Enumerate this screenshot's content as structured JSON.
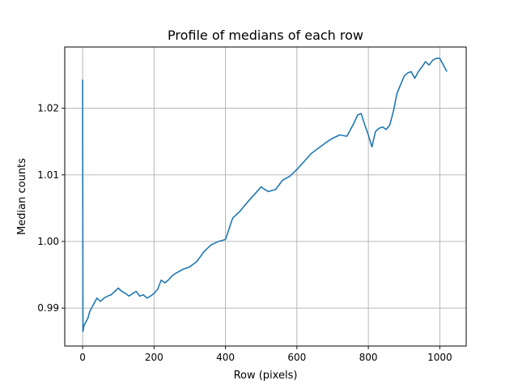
{
  "chart_data": {
    "type": "line",
    "title": "Profile of medians of each row",
    "xlabel": "Row (pixels)",
    "ylabel": "Median counts",
    "xlim": [
      -50,
      1074
    ],
    "ylim": [
      0.9843,
      1.0292
    ],
    "grid": true,
    "color": "#1f77b4",
    "xticks": [
      0,
      200,
      400,
      600,
      800,
      1000
    ],
    "xtick_labels": [
      "0",
      "200",
      "400",
      "600",
      "800",
      "1000"
    ],
    "yticks": [
      0.99,
      1.0,
      1.01,
      1.02
    ],
    "ytick_labels": [
      "0.99",
      "1.00",
      "1.01",
      "1.02"
    ],
    "series": [
      {
        "x": [
          0,
          1,
          2,
          3,
          5,
          10,
          15,
          20,
          30,
          40,
          50,
          60,
          70,
          80,
          90,
          100,
          110,
          120,
          130,
          140,
          150,
          160,
          170,
          180,
          190,
          200,
          210,
          220,
          230,
          240,
          250,
          260,
          280,
          300,
          320,
          340,
          360,
          380,
          400,
          420,
          440,
          460,
          480,
          500,
          510,
          520,
          540,
          560,
          580,
          600,
          620,
          640,
          660,
          680,
          700,
          720,
          740,
          760,
          770,
          780,
          790,
          800,
          810,
          820,
          830,
          840,
          850,
          860,
          870,
          880,
          890,
          900,
          910,
          920,
          930,
          940,
          950,
          960,
          970,
          980,
          990,
          1000,
          1010,
          1020
        ],
        "y": [
          1.0243,
          0.9865,
          0.9868,
          0.9872,
          0.9875,
          0.988,
          0.9885,
          0.9895,
          0.9905,
          0.9915,
          0.991,
          0.9915,
          0.9918,
          0.992,
          0.9925,
          0.993,
          0.9925,
          0.9922,
          0.9918,
          0.9922,
          0.9925,
          0.9918,
          0.992,
          0.9915,
          0.9918,
          0.9922,
          0.9928,
          0.9942,
          0.9938,
          0.9942,
          0.9948,
          0.9952,
          0.9958,
          0.9962,
          0.997,
          0.9985,
          0.9995,
          1.0,
          1.0003,
          1.0035,
          1.0045,
          1.0058,
          1.007,
          1.0082,
          1.0078,
          1.0075,
          1.0078,
          1.0092,
          1.0098,
          1.0108,
          1.012,
          1.0132,
          1.014,
          1.0148,
          1.0155,
          1.016,
          1.0158,
          1.0178,
          1.019,
          1.0192,
          1.0175,
          1.016,
          1.0142,
          1.0165,
          1.017,
          1.0172,
          1.0168,
          1.0175,
          1.0195,
          1.0222,
          1.0235,
          1.0248,
          1.0253,
          1.0255,
          1.0245,
          1.0255,
          1.0262,
          1.027,
          1.0265,
          1.0272,
          1.0275,
          1.0275,
          1.0265,
          1.0255
        ]
      }
    ]
  }
}
